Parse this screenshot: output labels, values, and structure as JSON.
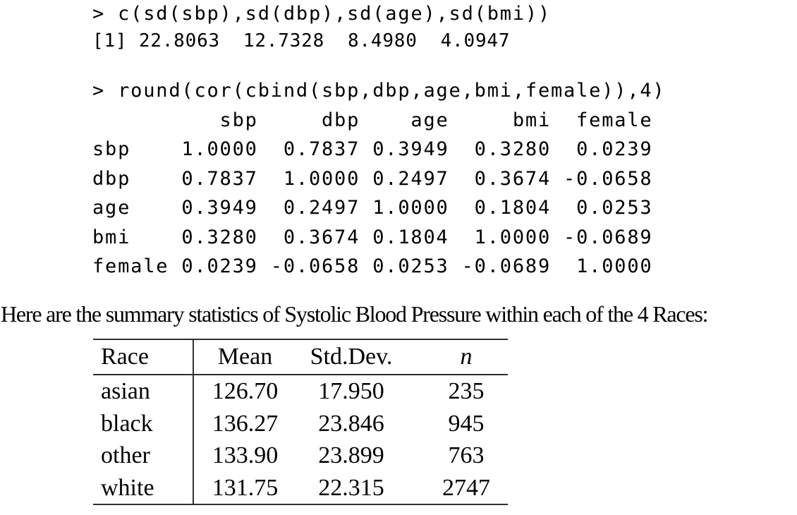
{
  "console": {
    "lines": [
      "> c(sd(sbp),sd(dbp),sd(age),sd(bmi))",
      "[1] 22.8063  12.7328  8.4980  4.0947",
      "",
      "> round(cor(cbind(sbp,dbp,age,bmi,female)),4)",
      "          sbp     dbp    age     bmi  female",
      "sbp    1.0000  0.7837 0.3949  0.3280  0.0239",
      "dbp    0.7837  1.0000 0.2497  0.3674 -0.0658",
      "age    0.3949  0.2497 1.0000  0.1804  0.0253",
      "bmi    0.3280  0.3674 0.1804  1.0000 -0.0689",
      "female 0.0239 -0.0658 0.0253 -0.0689  1.0000"
    ]
  },
  "caption": {
    "text": "Here are the summary statistics of Systolic Blood Pressure within each of the 4 Races:"
  },
  "table": {
    "headers": {
      "race": "Race",
      "mean": "Mean",
      "std_dev": "Std.Dev.",
      "n": "n"
    },
    "rows": [
      {
        "race": "asian",
        "mean": "126.70",
        "std_dev": "17.950",
        "n": "235"
      },
      {
        "race": "black",
        "mean": "136.27",
        "std_dev": "23.846",
        "n": "945"
      },
      {
        "race": "other",
        "mean": "133.90",
        "std_dev": "23.899",
        "n": "763"
      },
      {
        "race": "white",
        "mean": "131.75",
        "std_dev": "22.315",
        "n": "2747"
      }
    ]
  },
  "colors": {
    "text": "#000000",
    "rule": "#2f2f2f",
    "background": "#ffffff"
  }
}
